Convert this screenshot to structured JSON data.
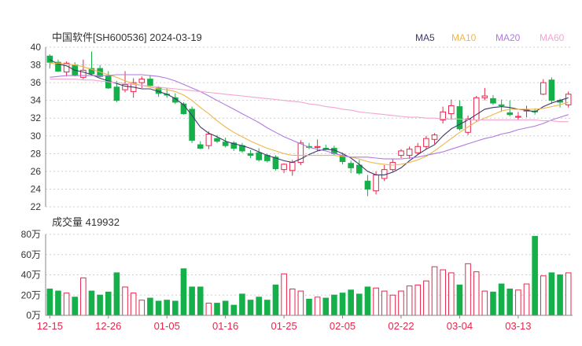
{
  "header": {
    "title": "中国软件[SH600536] 2024-03-19",
    "volume_label": "成交量 419932"
  },
  "legend": [
    {
      "label": "MA5",
      "color": "#3a3a6a"
    },
    {
      "label": "MA10",
      "color": "#f0b64a"
    },
    {
      "label": "MA20",
      "color": "#b27ae0"
    },
    {
      "label": "MA60",
      "color": "#f3a6cf"
    }
  ],
  "colors": {
    "up": "#e8264b",
    "down": "#16b04a",
    "axis": "#333333",
    "grid": "#cfcfcf"
  },
  "chart_data": [
    {
      "type": "candlestick",
      "title": "中国软件[SH600536] 2024-03-19",
      "ylim": [
        22,
        40
      ],
      "yticks": [
        22,
        24,
        26,
        28,
        30,
        32,
        34,
        36,
        38,
        40
      ],
      "xtick_labels": [
        {
          "index": 0,
          "label": "12-15"
        },
        {
          "index": 7,
          "label": "12-26"
        },
        {
          "index": 14,
          "label": "01-05"
        },
        {
          "index": 21,
          "label": "01-16"
        },
        {
          "index": 28,
          "label": "01-25"
        },
        {
          "index": 35,
          "label": "02-05"
        },
        {
          "index": 42,
          "label": "02-22"
        },
        {
          "index": 49,
          "label": "03-04"
        },
        {
          "index": 56,
          "label": "03-13"
        }
      ],
      "ohlc": [
        [
          39.0,
          39.2,
          37.6,
          38.3
        ],
        [
          38.3,
          38.6,
          37.2,
          37.3
        ],
        [
          37.2,
          38.4,
          36.7,
          38.2
        ],
        [
          38.0,
          38.3,
          36.7,
          36.8
        ],
        [
          36.6,
          38.6,
          36.4,
          37.4
        ],
        [
          37.6,
          39.5,
          36.8,
          37.0
        ],
        [
          37.6,
          38.0,
          36.6,
          36.7
        ],
        [
          36.8,
          37.3,
          35.3,
          35.4
        ],
        [
          35.5,
          36.2,
          33.8,
          34.0
        ],
        [
          35.2,
          37.3,
          34.9,
          35.8
        ],
        [
          35.0,
          36.5,
          34.3,
          36.0
        ],
        [
          36.0,
          36.7,
          35.4,
          36.4
        ],
        [
          36.4,
          36.8,
          35.5,
          35.7
        ],
        [
          35.4,
          35.6,
          34.4,
          34.8
        ],
        [
          34.7,
          35.4,
          34.3,
          34.6
        ],
        [
          34.3,
          34.8,
          33.6,
          33.8
        ],
        [
          33.6,
          33.8,
          32.4,
          32.5
        ],
        [
          33.0,
          33.3,
          29.2,
          29.5
        ],
        [
          29.0,
          29.4,
          28.5,
          28.6
        ],
        [
          28.9,
          30.5,
          28.5,
          30.2
        ],
        [
          29.7,
          30.1,
          29.2,
          29.4
        ],
        [
          29.3,
          29.8,
          28.7,
          28.9
        ],
        [
          29.2,
          29.4,
          28.3,
          28.6
        ],
        [
          28.9,
          29.2,
          28.1,
          28.3
        ],
        [
          28.0,
          28.4,
          27.5,
          27.8
        ],
        [
          28.1,
          28.6,
          27.1,
          27.3
        ],
        [
          27.8,
          28.0,
          27.0,
          27.2
        ],
        [
          27.6,
          27.8,
          26.1,
          26.3
        ],
        [
          26.2,
          26.9,
          25.8,
          26.8
        ],
        [
          26.1,
          27.3,
          25.5,
          27.0
        ],
        [
          27.0,
          29.5,
          26.7,
          29.2
        ],
        [
          28.8,
          29.2,
          28.5,
          28.7
        ],
        [
          28.7,
          29.6,
          28.3,
          28.8
        ],
        [
          28.6,
          29.0,
          28.4,
          28.5
        ],
        [
          28.6,
          28.9,
          27.8,
          28.0
        ],
        [
          27.8,
          28.1,
          26.8,
          27.1
        ],
        [
          26.9,
          27.2,
          25.8,
          26.4
        ],
        [
          26.7,
          27.3,
          25.6,
          25.8
        ],
        [
          24.9,
          25.6,
          23.2,
          24.0
        ],
        [
          23.8,
          26.0,
          23.4,
          25.6
        ],
        [
          25.2,
          26.7,
          24.9,
          26.2
        ],
        [
          26.2,
          27.4,
          26.0,
          27.0
        ],
        [
          27.8,
          28.5,
          27.5,
          28.3
        ],
        [
          27.8,
          28.8,
          27.4,
          28.5
        ],
        [
          28.1,
          29.2,
          27.9,
          28.8
        ],
        [
          28.8,
          30.0,
          28.5,
          29.7
        ],
        [
          29.6,
          30.3,
          29.1,
          30.1
        ],
        [
          31.8,
          33.3,
          31.4,
          32.7
        ],
        [
          32.5,
          34.1,
          31.8,
          33.4
        ],
        [
          33.3,
          34.0,
          30.6,
          30.8
        ],
        [
          30.4,
          32.3,
          30.1,
          31.9
        ],
        [
          31.8,
          34.5,
          31.6,
          34.3
        ],
        [
          34.3,
          35.4,
          34.0,
          34.5
        ],
        [
          34.2,
          34.6,
          33.5,
          33.7
        ],
        [
          33.5,
          34.1,
          32.7,
          33.4
        ],
        [
          32.6,
          34.0,
          32.2,
          32.4
        ],
        [
          32.1,
          32.7,
          31.8,
          32.2
        ],
        [
          32.8,
          33.4,
          32.1,
          32.9
        ],
        [
          32.8,
          33.1,
          32.4,
          32.7
        ],
        [
          34.7,
          36.4,
          34.6,
          36.0
        ],
        [
          36.3,
          36.6,
          33.6,
          34.0
        ],
        [
          34.0,
          34.2,
          33.2,
          33.8
        ],
        [
          33.5,
          35.0,
          33.2,
          34.7
        ]
      ],
      "series": [
        {
          "name": "MA5",
          "values": [
            38.6,
            38.1,
            37.9,
            37.4,
            37.2,
            36.9,
            36.5,
            36.2,
            35.9,
            35.6,
            35.5,
            35.3,
            35.3,
            35.0,
            34.7,
            34.2,
            33.5,
            32.3,
            31.0,
            30.3,
            29.9,
            29.4,
            29.1,
            28.9,
            28.6,
            28.2,
            27.8,
            27.5,
            27.2,
            27.0,
            27.4,
            27.9,
            28.3,
            28.5,
            28.4,
            28.0,
            27.5,
            26.8,
            26.0,
            25.6,
            25.6,
            25.9,
            26.4,
            27.2,
            27.9,
            28.5,
            29.0,
            30.0,
            30.8,
            31.3,
            31.8,
            32.4,
            33.0,
            33.2,
            33.3,
            33.2,
            33.0,
            32.9,
            32.7,
            33.3,
            33.7,
            34.0,
            34.3
          ]
        },
        {
          "name": "MA10",
          "values": [
            38.2,
            38.2,
            38.1,
            38.0,
            37.8,
            37.5,
            37.2,
            36.9,
            36.6,
            36.2,
            35.9,
            35.7,
            35.5,
            35.3,
            35.2,
            35.0,
            34.6,
            34.0,
            33.2,
            32.5,
            31.7,
            31.0,
            30.4,
            29.9,
            29.4,
            29.0,
            28.6,
            28.3,
            28.0,
            27.8,
            27.8,
            27.8,
            27.8,
            27.8,
            27.8,
            27.7,
            27.6,
            27.4,
            27.1,
            26.9,
            26.8,
            26.7,
            26.8,
            27.0,
            27.3,
            27.7,
            28.3,
            29.0,
            29.7,
            30.4,
            31.0,
            31.6,
            32.0,
            32.4,
            32.8,
            33.0,
            33.0,
            33.0,
            33.0,
            33.1,
            33.3,
            33.5,
            33.8
          ]
        },
        {
          "name": "MA20",
          "values": [
            36.6,
            36.7,
            36.8,
            36.8,
            36.8,
            36.8,
            36.8,
            36.8,
            36.9,
            36.9,
            36.9,
            36.9,
            36.8,
            36.7,
            36.5,
            36.2,
            35.8,
            35.4,
            35.0,
            34.5,
            34.0,
            33.5,
            33.0,
            32.5,
            32.0,
            31.5,
            30.9,
            30.4,
            29.9,
            29.5,
            29.1,
            28.7,
            28.5,
            28.3,
            28.0,
            27.8,
            27.6,
            27.6,
            27.6,
            27.5,
            27.4,
            27.4,
            27.4,
            27.5,
            27.6,
            27.8,
            28.0,
            28.2,
            28.5,
            28.8,
            29.1,
            29.4,
            29.7,
            29.9,
            30.2,
            30.4,
            30.7,
            30.9,
            31.1,
            31.4,
            31.8,
            32.1,
            32.4
          ]
        },
        {
          "name": "MA60",
          "values": [
            36.4,
            36.4,
            36.4,
            36.4,
            36.3,
            36.3,
            36.2,
            36.1,
            36.0,
            35.9,
            35.8,
            35.7,
            35.6,
            35.5,
            35.4,
            35.3,
            35.2,
            35.1,
            35.0,
            34.9,
            34.8,
            34.7,
            34.6,
            34.5,
            34.4,
            34.3,
            34.2,
            34.1,
            34.0,
            33.9,
            33.8,
            33.6,
            33.5,
            33.3,
            33.2,
            33.0,
            32.9,
            32.7,
            32.6,
            32.5,
            32.4,
            32.3,
            32.2,
            32.1,
            32.1,
            32.0,
            32.0,
            31.9,
            31.9,
            31.9,
            31.8,
            31.8,
            31.8,
            31.8,
            31.8,
            31.8,
            31.8,
            31.8,
            31.8,
            31.7,
            31.7,
            31.6,
            31.6
          ]
        }
      ]
    },
    {
      "type": "bar",
      "title": "成交量 419932",
      "unit": "万",
      "ylim": [
        0,
        80
      ],
      "ytick_labels": [
        {
          "value": 0,
          "label": "0万"
        },
        {
          "value": 20,
          "label": "20万"
        },
        {
          "value": 40,
          "label": "40万"
        },
        {
          "value": 60,
          "label": "60万"
        },
        {
          "value": 80,
          "label": "80万"
        }
      ],
      "values": [
        26,
        24,
        22,
        18,
        37,
        24,
        20,
        23,
        42,
        28,
        22,
        15,
        17,
        14,
        15,
        14,
        46,
        28,
        28,
        12,
        12,
        14,
        10,
        21,
        15,
        18,
        15,
        30,
        41,
        26,
        24,
        16,
        18,
        17,
        20,
        22,
        25,
        21,
        28,
        27,
        24,
        20,
        24,
        29,
        30,
        34,
        48,
        45,
        42,
        30,
        51,
        43,
        24,
        23,
        31,
        26,
        25,
        31,
        78,
        39,
        42,
        40,
        42
      ]
    }
  ]
}
